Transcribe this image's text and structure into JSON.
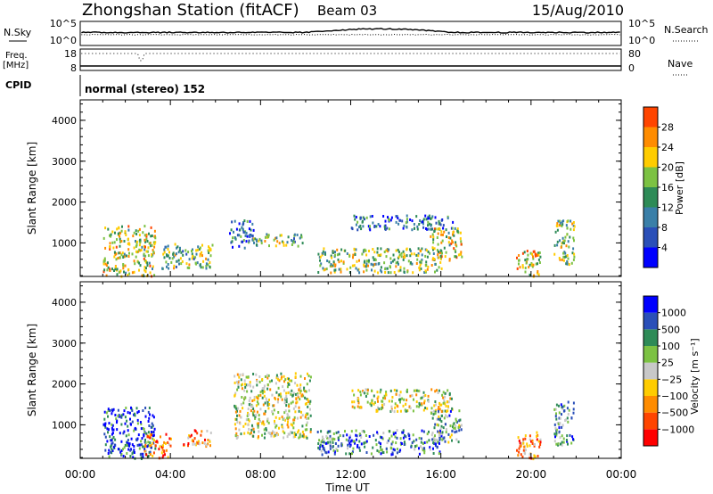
{
  "header": {
    "station": "Zhongshan Station (fitACF)",
    "beam": "Beam 03",
    "date": "15/Aug/2010"
  },
  "nsky_panel": {
    "label": "N.Sky",
    "right_label": "N.Search",
    "left_ticks": [
      "10^5",
      "10^0"
    ],
    "right_ticks": [
      "10^5",
      "10^0"
    ]
  },
  "freq_panel": {
    "label_line1": "Freq.",
    "label_line2": "[MHz]",
    "right_label": "Nave",
    "left_ticks": [
      "18",
      "8"
    ],
    "right_ticks": [
      "80",
      "0"
    ]
  },
  "cpid": {
    "label": "CPID",
    "mode": "normal (stereo) 152"
  },
  "colors": {
    "power_scale": [
      "#0000ff",
      "#2a4fb8",
      "#3a7fa8",
      "#2e8b57",
      "#7cc243",
      "#ffcc00",
      "#ff8c00",
      "#ff4500",
      "#ff0000"
    ],
    "velocity_scale": [
      "#ff0000",
      "#ff4500",
      "#ff8c00",
      "#ffcc00",
      "#c8c8c8",
      "#7cc243",
      "#2e8b57",
      "#2a4fb8",
      "#0000ff"
    ]
  },
  "chart_data": [
    {
      "type": "heatmap",
      "name": "power",
      "ylabel": "Slant Range [km]",
      "ylim": [
        180,
        4500
      ],
      "yticks": [
        "1000",
        "2000",
        "3000",
        "4000"
      ],
      "colorbar": {
        "label": "Power [dB]",
        "ticks": [
          "4",
          "8",
          "12",
          "16",
          "20",
          "24",
          "28"
        ],
        "range": [
          0,
          32
        ]
      },
      "echo_regions": [
        {
          "t0": 1.0,
          "t1": 3.3,
          "r0": 200,
          "r1": 1450,
          "level": 0.55
        },
        {
          "t0": 3.6,
          "t1": 5.9,
          "r0": 400,
          "r1": 1000,
          "level": 0.45
        },
        {
          "t0": 6.6,
          "t1": 7.7,
          "r0": 900,
          "r1": 1600,
          "level": 0.25
        },
        {
          "t0": 7.6,
          "t1": 9.9,
          "r0": 950,
          "r1": 1250,
          "level": 0.45
        },
        {
          "t0": 10.5,
          "t1": 16.0,
          "r0": 300,
          "r1": 900,
          "level": 0.5
        },
        {
          "t0": 12.0,
          "t1": 16.5,
          "r0": 1350,
          "r1": 1700,
          "level": 0.25
        },
        {
          "t0": 15.5,
          "t1": 16.9,
          "r0": 600,
          "r1": 1400,
          "level": 0.55
        },
        {
          "t0": 19.3,
          "t1": 20.4,
          "r0": 200,
          "r1": 850,
          "level": 0.6
        },
        {
          "t0": 21.0,
          "t1": 21.9,
          "r0": 500,
          "r1": 1600,
          "level": 0.5
        }
      ]
    },
    {
      "type": "heatmap",
      "name": "velocity",
      "ylabel": "Slant Range [km]",
      "xlabel": "Time UT",
      "xlim": [
        0,
        24
      ],
      "xticks": [
        "00:00",
        "04:00",
        "08:00",
        "12:00",
        "16:00",
        "20:00",
        "00:00"
      ],
      "ylim": [
        180,
        4500
      ],
      "yticks": [
        "1000",
        "2000",
        "3000",
        "4000"
      ],
      "colorbar": {
        "label": "Velocity [m s⁻¹]",
        "ticks": [
          "1000",
          "500",
          "100",
          "25",
          "−25",
          "−100",
          "−500",
          "−1000"
        ]
      },
      "echo_regions": [
        {
          "t0": 1.0,
          "t1": 3.3,
          "r0": 200,
          "r1": 1450,
          "level": 0.85
        },
        {
          "t0": 2.8,
          "t1": 4.0,
          "r0": 200,
          "r1": 800,
          "level": 0.25
        },
        {
          "t0": 4.5,
          "t1": 5.8,
          "r0": 500,
          "r1": 900,
          "level": 0.25
        },
        {
          "t0": 6.8,
          "t1": 10.2,
          "r0": 700,
          "r1": 2300,
          "level": 0.5
        },
        {
          "t0": 10.5,
          "t1": 16.0,
          "r0": 300,
          "r1": 900,
          "level": 0.75
        },
        {
          "t0": 12.0,
          "t1": 16.5,
          "r0": 1350,
          "r1": 1900,
          "level": 0.5
        },
        {
          "t0": 15.5,
          "t1": 16.9,
          "r0": 600,
          "r1": 1400,
          "level": 0.65
        },
        {
          "t0": 19.3,
          "t1": 20.4,
          "r0": 200,
          "r1": 850,
          "level": 0.3
        },
        {
          "t0": 21.0,
          "t1": 21.9,
          "r0": 500,
          "r1": 1600,
          "level": 0.7
        }
      ]
    }
  ]
}
